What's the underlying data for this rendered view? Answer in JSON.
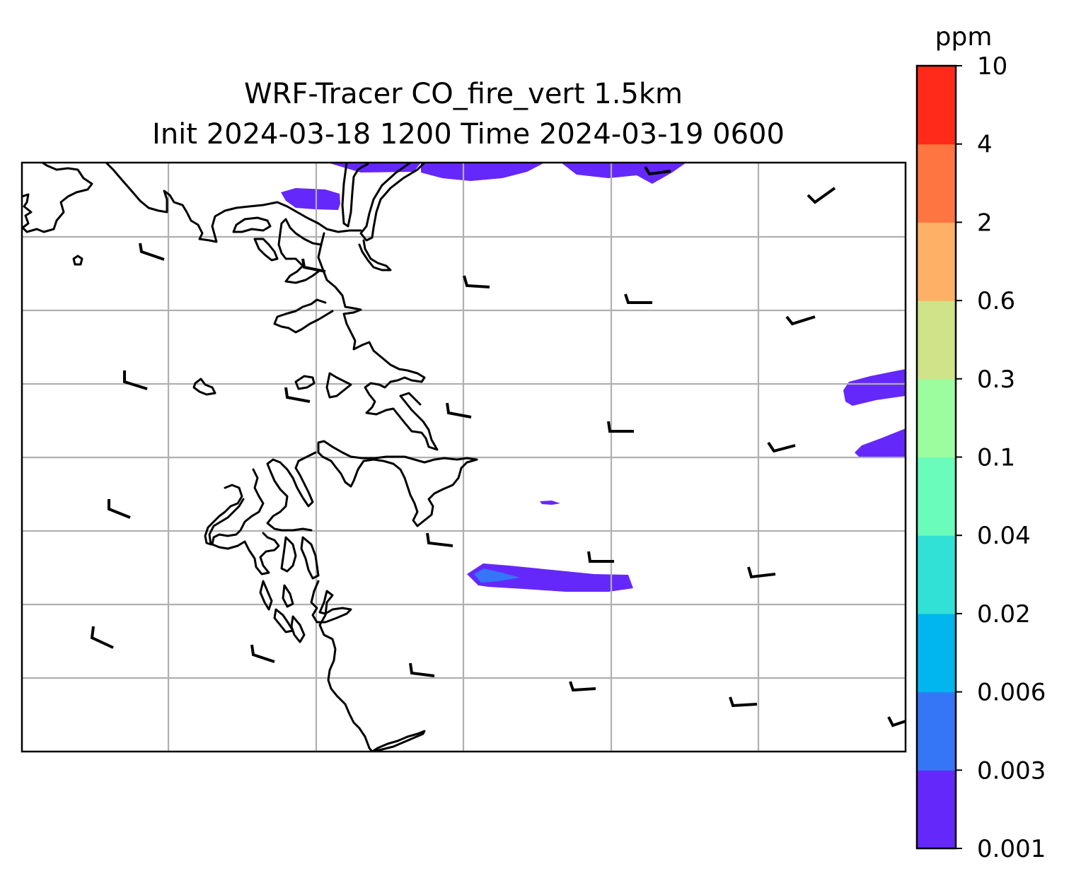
{
  "title": {
    "line1": "WRF-Tracer CO_fire_vert 1.5km",
    "line2": "Init 2024-03-18 1200 Time 2024-03-19 0600"
  },
  "colorbar": {
    "unit": "ppm",
    "levels": [
      "0.001",
      "0.003",
      "0.006",
      "0.02",
      "0.04",
      "0.1",
      "0.3",
      "0.6",
      "2",
      "4",
      "10"
    ],
    "colors": [
      "#6528fb",
      "#3476f6",
      "#01b5ee",
      "#32e1d6",
      "#69fcbb",
      "#9cfd9e",
      "#d1e389",
      "#fdb066",
      "#fe7541",
      "#ff2a19"
    ]
  },
  "map": {
    "colors": {
      "frame": "#000000",
      "grid": "#b0b0b0",
      "coastline": "#000000",
      "barb": "#000000",
      "background": "#ffffff"
    },
    "grid": "on"
  }
}
